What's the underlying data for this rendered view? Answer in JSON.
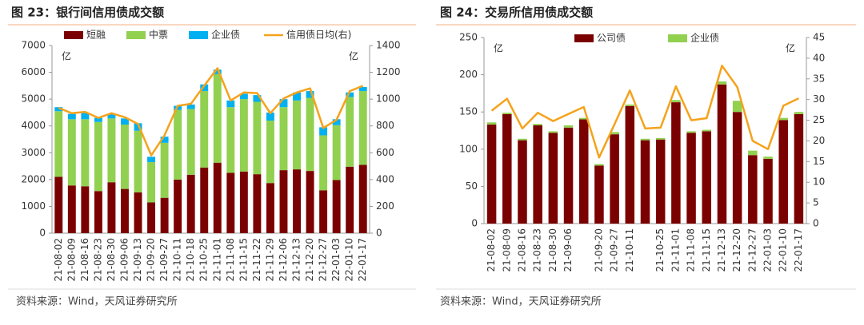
{
  "header_left": "图 23：银行间信用债成交额",
  "header_right": "图 24：交易所信用债成交额",
  "source_left": "资料来源：Wind，天风证券研究所",
  "source_right": "资料来源：Wind，天风证券研究所",
  "chart_data": [
    {
      "type": "bar",
      "stacked": true,
      "y_unit": "亿",
      "y2_unit": "亿",
      "categories": [
        "21-08-02",
        "21-08-09",
        "21-08-16",
        "21-08-23",
        "21-08-30",
        "21-09-06",
        "21-09-13",
        "21-09-20",
        "21-09-27",
        "21-10-11",
        "21-10-18",
        "21-10-25",
        "21-11-01",
        "21-11-08",
        "21-11-15",
        "21-11-22",
        "21-11-29",
        "21-12-06",
        "21-12-13",
        "21-12-20",
        "21-12-27",
        "22-01-03",
        "22-01-10",
        "22-01-17"
      ],
      "series": [
        {
          "name": "短融",
          "color": "#7b0000",
          "values": [
            2100,
            1780,
            1750,
            1570,
            1900,
            1650,
            1520,
            1150,
            1320,
            2000,
            2180,
            2450,
            2630,
            2250,
            2300,
            2200,
            1870,
            2350,
            2380,
            2320,
            1600,
            1980,
            2480,
            2550
          ]
        },
        {
          "name": "中票",
          "color": "#92d050",
          "values": [
            2450,
            2470,
            2500,
            2580,
            2380,
            2400,
            2300,
            1500,
            2050,
            2600,
            2450,
            2850,
            3300,
            2450,
            2700,
            2700,
            2330,
            2350,
            2570,
            2730,
            2050,
            2050,
            2600,
            2750
          ]
        },
        {
          "name": "企业债",
          "color": "#00b0f0",
          "values": [
            150,
            200,
            230,
            150,
            170,
            230,
            280,
            200,
            230,
            150,
            170,
            250,
            170,
            250,
            200,
            250,
            300,
            300,
            300,
            250,
            300,
            220,
            170,
            150
          ]
        },
        {
          "name": "信用债日均(右)",
          "color": "#f5a21c",
          "type": "line",
          "axis": "y2",
          "values": [
            935,
            895,
            905,
            860,
            895,
            865,
            815,
            580,
            730,
            950,
            965,
            1100,
            1230,
            990,
            1050,
            1045,
            895,
            1005,
            1050,
            1080,
            785,
            845,
            1060,
            1100
          ]
        }
      ],
      "ylim": [
        0,
        7000
      ],
      "yticks": [
        0,
        1000,
        2000,
        3000,
        4000,
        5000,
        6000,
        7000
      ],
      "y2lim": [
        0,
        1400
      ],
      "y2ticks": [
        0,
        200,
        400,
        600,
        800,
        1000,
        1200,
        1400
      ]
    },
    {
      "type": "bar",
      "stacked": true,
      "y_unit": "亿",
      "y2_unit": "亿",
      "categories": [
        "21-08-02",
        "21-08-09",
        "21-08-16",
        "21-08-23",
        "21-08-30",
        "21-09-06",
        null,
        "21-09-20",
        "21-09-27",
        "21-10-11",
        null,
        "21-10-25",
        "21-11-01",
        "21-11-08",
        "21-11-15",
        "21-12-13",
        "21-12-20",
        "21-12-27",
        "22-01-03",
        "22-01-10",
        "22-01-17"
      ],
      "series": [
        {
          "name": "公司债",
          "color": "#7b0000",
          "values": [
            133,
            147,
            112,
            132,
            122,
            129,
            140,
            78,
            120,
            158,
            112,
            113,
            163,
            122,
            124,
            187,
            150,
            92,
            87,
            139,
            147
          ]
        },
        {
          "name": "企业债",
          "color": "#92d050",
          "values": [
            3,
            2,
            2,
            2,
            2,
            3,
            2,
            2,
            3,
            2,
            2,
            2,
            3,
            2,
            2,
            4,
            15,
            6,
            3,
            3,
            3
          ]
        },
        {
          "color": "#f5a21c",
          "type": "line",
          "axis": "y2",
          "values": [
            27.3,
            30.2,
            23,
            26.8,
            24.8,
            26.5,
            28.2,
            16,
            24,
            32.2,
            23,
            23.2,
            33.2,
            25,
            25.5,
            38.2,
            33,
            20,
            18,
            28.5,
            30.3
          ]
        }
      ],
      "ylim": [
        0,
        250
      ],
      "yticks": [
        0,
        50,
        100,
        150,
        200,
        250
      ],
      "y2lim": [
        0,
        45
      ],
      "y2ticks": [
        0,
        5,
        10,
        15,
        20,
        25,
        30,
        35,
        40,
        45
      ]
    }
  ]
}
